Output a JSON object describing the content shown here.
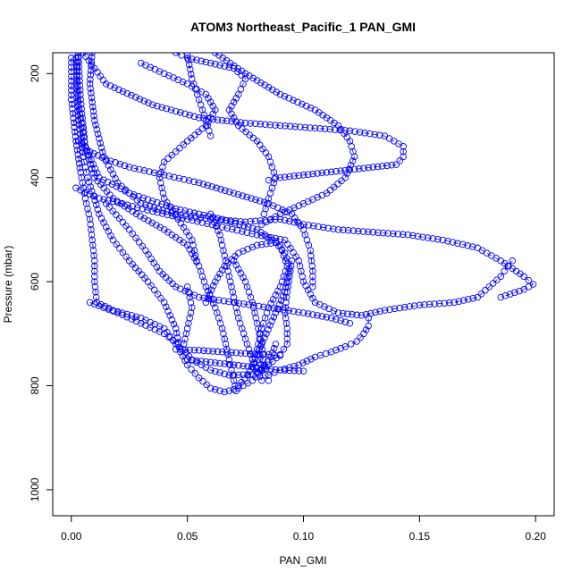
{
  "chart_data": {
    "type": "scatter",
    "title": "ATOM3 Northeast_Pacific_1 PAN_GMI",
    "xlabel": "PAN_GMI",
    "ylabel": "Pressure (mbar)",
    "xlim": [
      -0.008,
      0.208
    ],
    "ylim": [
      1050,
      160
    ],
    "y_inverted": true,
    "x_ticks": [
      0.0,
      0.05,
      0.1,
      0.15,
      0.2
    ],
    "x_tick_labels": [
      "0.00",
      "0.05",
      "0.10",
      "0.15",
      "0.20"
    ],
    "y_ticks": [
      200,
      400,
      600,
      800,
      1000
    ],
    "y_tick_labels": [
      "200",
      "400",
      "600",
      "800",
      "1000"
    ],
    "marker": "open-circle",
    "color": "#0000ff",
    "grid": false,
    "legend": "none",
    "series": [
      {
        "values": [
          [
            0.003,
            160
          ],
          [
            0.002,
            220
          ],
          [
            0.003,
            290
          ],
          [
            0.005,
            360
          ],
          [
            0.007,
            400
          ],
          [
            0.012,
            470
          ],
          [
            0.018,
            520
          ],
          [
            0.025,
            560
          ],
          [
            0.033,
            600
          ],
          [
            0.04,
            640
          ],
          [
            0.045,
            690
          ],
          [
            0.047,
            735
          ],
          [
            0.05,
            760
          ],
          [
            0.055,
            785
          ],
          [
            0.06,
            805
          ],
          [
            0.066,
            812
          ],
          [
            0.072,
            805
          ],
          [
            0.078,
            790
          ],
          [
            0.082,
            770
          ],
          [
            0.086,
            745
          ],
          [
            0.088,
            720
          ]
        ]
      },
      {
        "values": [
          [
            0.003,
            160
          ],
          [
            0.004,
            250
          ],
          [
            0.006,
            340
          ],
          [
            0.01,
            400
          ],
          [
            0.018,
            440
          ],
          [
            0.028,
            470
          ],
          [
            0.04,
            500
          ],
          [
            0.05,
            530
          ],
          [
            0.055,
            570
          ],
          [
            0.058,
            610
          ],
          [
            0.062,
            650
          ],
          [
            0.065,
            690
          ],
          [
            0.067,
            730
          ],
          [
            0.069,
            770
          ],
          [
            0.071,
            810
          ]
        ]
      },
      {
        "values": [
          [
            0.002,
            170
          ],
          [
            0.003,
            260
          ],
          [
            0.006,
            340
          ],
          [
            0.012,
            400
          ],
          [
            0.025,
            430
          ],
          [
            0.045,
            460
          ],
          [
            0.065,
            480
          ],
          [
            0.08,
            500
          ],
          [
            0.09,
            530
          ],
          [
            0.093,
            570
          ],
          [
            0.09,
            610
          ],
          [
            0.085,
            650
          ],
          [
            0.082,
            690
          ],
          [
            0.08,
            730
          ],
          [
            0.082,
            770
          ],
          [
            0.085,
            790
          ]
        ]
      },
      {
        "values": [
          [
            0.045,
            730
          ],
          [
            0.055,
            732
          ],
          [
            0.065,
            735
          ],
          [
            0.075,
            738
          ],
          [
            0.085,
            740
          ],
          [
            0.09,
            742
          ]
        ]
      },
      {
        "values": [
          [
            0.05,
            750
          ],
          [
            0.06,
            755
          ],
          [
            0.07,
            760
          ],
          [
            0.08,
            765
          ],
          [
            0.09,
            770
          ],
          [
            0.1,
            772
          ]
        ]
      },
      {
        "values": [
          [
            0.05,
            610
          ],
          [
            0.052,
            650
          ],
          [
            0.05,
            690
          ],
          [
            0.048,
            730
          ],
          [
            0.052,
            750
          ],
          [
            0.06,
            770
          ],
          [
            0.068,
            780
          ],
          [
            0.078,
            778
          ],
          [
            0.085,
            760
          ],
          [
            0.09,
            740
          ],
          [
            0.093,
            720
          ],
          [
            0.093,
            690
          ],
          [
            0.092,
            660
          ],
          [
            0.093,
            620
          ],
          [
            0.094,
            590
          ],
          [
            0.095,
            560
          ]
        ]
      },
      {
        "values": [
          [
            0.058,
            640
          ],
          [
            0.062,
            600
          ],
          [
            0.066,
            570
          ],
          [
            0.072,
            545
          ],
          [
            0.08,
            530
          ],
          [
            0.088,
            525
          ],
          [
            0.092,
            545
          ],
          [
            0.094,
            575
          ],
          [
            0.092,
            620
          ],
          [
            0.088,
            660
          ],
          [
            0.084,
            700
          ],
          [
            0.08,
            740
          ],
          [
            0.076,
            780
          ],
          [
            0.072,
            800
          ]
        ]
      },
      {
        "values": [
          [
            0.009,
            160
          ],
          [
            0.008,
            220
          ],
          [
            0.01,
            290
          ],
          [
            0.014,
            360
          ],
          [
            0.02,
            410
          ],
          [
            0.03,
            450
          ],
          [
            0.045,
            470
          ],
          [
            0.06,
            480
          ],
          [
            0.075,
            485
          ],
          [
            0.09,
            480
          ],
          [
            0.1,
            490
          ],
          [
            0.115,
            500
          ],
          [
            0.13,
            505
          ],
          [
            0.145,
            510
          ],
          [
            0.16,
            520
          ],
          [
            0.175,
            535
          ],
          [
            0.185,
            560
          ],
          [
            0.195,
            590
          ],
          [
            0.199,
            605
          ],
          [
            0.195,
            615
          ],
          [
            0.185,
            630
          ]
        ]
      },
      {
        "values": [
          [
            0.005,
            160
          ],
          [
            0.015,
            220
          ],
          [
            0.035,
            260
          ],
          [
            0.055,
            285
          ],
          [
            0.075,
            295
          ],
          [
            0.09,
            300
          ],
          [
            0.105,
            305
          ],
          [
            0.12,
            310
          ],
          [
            0.135,
            320
          ],
          [
            0.143,
            340
          ],
          [
            0.143,
            360
          ],
          [
            0.14,
            375
          ],
          [
            0.13,
            380
          ],
          [
            0.12,
            385
          ],
          [
            0.11,
            390
          ],
          [
            0.1,
            395
          ],
          [
            0.09,
            400
          ],
          [
            0.085,
            405
          ]
        ]
      },
      {
        "values": [
          [
            0.0,
            170
          ],
          [
            0.0,
            250
          ],
          [
            0.002,
            330
          ],
          [
            0.004,
            390
          ],
          [
            0.006,
            440
          ],
          [
            0.008,
            480
          ],
          [
            0.009,
            520
          ],
          [
            0.01,
            560
          ],
          [
            0.01,
            600
          ],
          [
            0.011,
            640
          ],
          [
            0.018,
            655
          ],
          [
            0.03,
            670
          ],
          [
            0.04,
            690
          ],
          [
            0.045,
            720
          ]
        ]
      },
      {
        "values": [
          [
            0.003,
            330
          ],
          [
            0.008,
            350
          ],
          [
            0.015,
            365
          ],
          [
            0.025,
            380
          ],
          [
            0.04,
            395
          ],
          [
            0.055,
            410
          ],
          [
            0.07,
            430
          ],
          [
            0.085,
            450
          ],
          [
            0.095,
            470
          ],
          [
            0.1,
            500
          ],
          [
            0.103,
            540
          ],
          [
            0.104,
            580
          ],
          [
            0.104,
            610
          ]
        ]
      },
      {
        "values": [
          [
            0.03,
            180
          ],
          [
            0.04,
            200
          ],
          [
            0.05,
            220
          ],
          [
            0.058,
            240
          ],
          [
            0.062,
            270
          ],
          [
            0.058,
            300
          ],
          [
            0.05,
            330
          ],
          [
            0.045,
            350
          ],
          [
            0.04,
            370
          ],
          [
            0.038,
            400
          ],
          [
            0.04,
            440
          ],
          [
            0.046,
            480
          ],
          [
            0.052,
            520
          ],
          [
            0.054,
            560
          ]
        ]
      },
      {
        "values": [
          [
            0.045,
            160
          ],
          [
            0.05,
            170
          ],
          [
            0.06,
            180
          ],
          [
            0.07,
            190
          ],
          [
            0.075,
            210
          ],
          [
            0.072,
            240
          ],
          [
            0.068,
            270
          ],
          [
            0.072,
            300
          ],
          [
            0.08,
            330
          ],
          [
            0.085,
            360
          ],
          [
            0.088,
            400
          ],
          [
            0.085,
            440
          ],
          [
            0.083,
            470
          ]
        ]
      },
      {
        "values": [
          [
            0.05,
            165
          ],
          [
            0.052,
            210
          ],
          [
            0.055,
            250
          ],
          [
            0.058,
            290
          ],
          [
            0.06,
            320
          ]
        ]
      },
      {
        "values": [
          [
            0.002,
            420
          ],
          [
            0.012,
            440
          ],
          [
            0.022,
            450
          ],
          [
            0.035,
            465
          ],
          [
            0.05,
            480
          ],
          [
            0.065,
            495
          ],
          [
            0.08,
            510
          ],
          [
            0.092,
            520
          ],
          [
            0.098,
            560
          ],
          [
            0.1,
            600
          ],
          [
            0.105,
            640
          ],
          [
            0.115,
            660
          ],
          [
            0.125,
            665
          ],
          [
            0.135,
            655
          ],
          [
            0.15,
            645
          ],
          [
            0.165,
            640
          ],
          [
            0.175,
            630
          ],
          [
            0.18,
            610
          ],
          [
            0.185,
            590
          ],
          [
            0.188,
            570
          ],
          [
            0.19,
            560
          ]
        ]
      },
      {
        "values": [
          [
            0.008,
            640
          ],
          [
            0.02,
            660
          ],
          [
            0.03,
            680
          ],
          [
            0.04,
            700
          ],
          [
            0.046,
            720
          ]
        ]
      },
      {
        "values": [
          [
            0.085,
            780
          ],
          [
            0.09,
            770
          ],
          [
            0.098,
            760
          ],
          [
            0.105,
            745
          ],
          [
            0.112,
            735
          ],
          [
            0.118,
            725
          ],
          [
            0.123,
            715
          ],
          [
            0.126,
            700
          ],
          [
            0.128,
            685
          ],
          [
            0.128,
            670
          ]
        ]
      },
      {
        "values": [
          [
            0.062,
            160
          ],
          [
            0.075,
            200
          ],
          [
            0.09,
            240
          ],
          [
            0.105,
            270
          ],
          [
            0.115,
            300
          ],
          [
            0.12,
            330
          ],
          [
            0.122,
            360
          ],
          [
            0.118,
            400
          ],
          [
            0.11,
            430
          ],
          [
            0.1,
            450
          ],
          [
            0.09,
            470
          ],
          [
            0.082,
            490
          ]
        ]
      },
      {
        "values": [
          [
            0.015,
            450
          ],
          [
            0.025,
            500
          ],
          [
            0.032,
            540
          ],
          [
            0.038,
            580
          ],
          [
            0.045,
            610
          ],
          [
            0.055,
            630
          ],
          [
            0.07,
            640
          ],
          [
            0.085,
            650
          ],
          [
            0.1,
            660
          ],
          [
            0.112,
            670
          ],
          [
            0.12,
            680
          ]
        ]
      },
      {
        "values": [
          [
            0.07,
            560
          ],
          [
            0.075,
            600
          ],
          [
            0.078,
            640
          ],
          [
            0.08,
            680
          ],
          [
            0.082,
            720
          ],
          [
            0.083,
            760
          ]
        ]
      },
      {
        "values": [
          [
            0.06,
            470
          ],
          [
            0.064,
            510
          ],
          [
            0.066,
            550
          ],
          [
            0.068,
            590
          ],
          [
            0.07,
            630
          ],
          [
            0.072,
            670
          ],
          [
            0.075,
            710
          ],
          [
            0.078,
            750
          ],
          [
            0.082,
            790
          ]
        ]
      }
    ]
  }
}
